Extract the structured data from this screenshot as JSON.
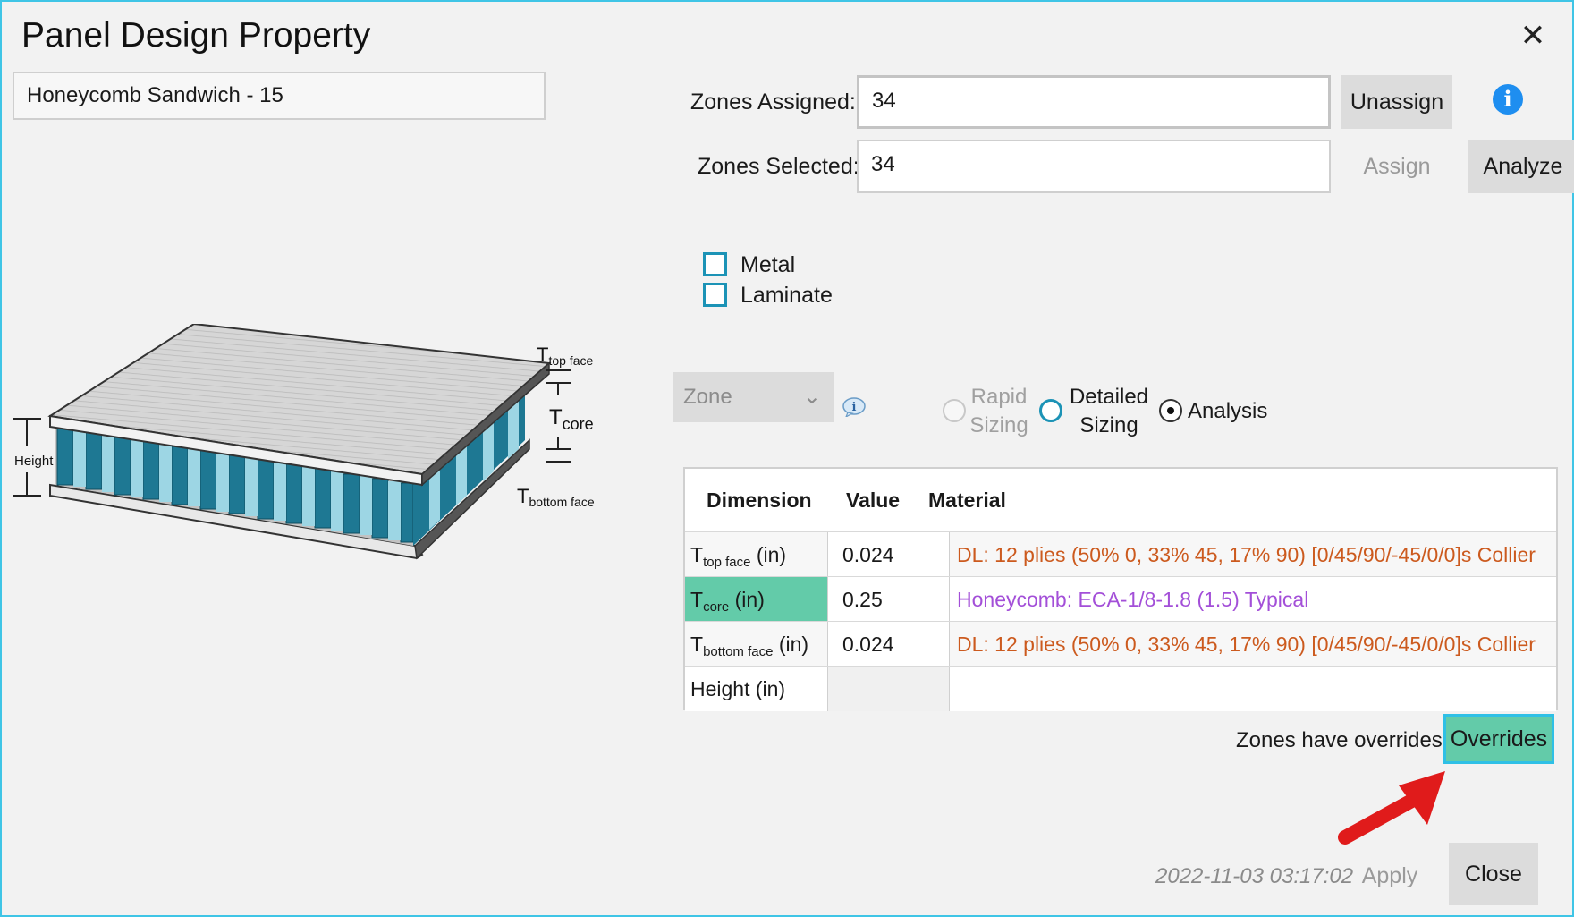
{
  "window": {
    "title": "Panel Design Property"
  },
  "property_name": "Honeycomb Sandwich - 15",
  "zones": {
    "assigned_label": "Zones Assigned:",
    "assigned_value": "34",
    "selected_label": "Zones Selected:",
    "selected_value": "34",
    "unassign_label": "Unassign",
    "assign_label": "Assign",
    "analyze_label": "Analyze"
  },
  "family": {
    "metal_label": "Metal",
    "metal_checked": false,
    "laminate_label": "Laminate",
    "laminate_checked": false
  },
  "mode": {
    "scope_select": "Zone",
    "rapid_label_1": "Rapid",
    "rapid_label_2": "Sizing",
    "detailed_label_1": "Detailed",
    "detailed_label_2": "Sizing",
    "analysis_label": "Analysis",
    "selected": "Analysis"
  },
  "diagram": {
    "labels": {
      "top": "T",
      "top_sub": "top face",
      "core": "T",
      "core_sub": "core",
      "bottom": "T",
      "bottom_sub": "bottom face",
      "height": "Height"
    }
  },
  "table": {
    "headers": [
      "Dimension",
      "Value",
      "Material"
    ],
    "rows": [
      {
        "dim_main": "T",
        "dim_sub": "top face",
        "dim_unit": " (in)",
        "value": "0.024",
        "material": "DL: 12 plies (50% 0, 33% 45, 17% 90) [0/45/90/-45/0/0]s Collier",
        "material_color": "orange"
      },
      {
        "dim_main": "T",
        "dim_sub": "core",
        "dim_unit": " (in)",
        "value": "0.25",
        "material": "Honeycomb: ECA-1/8-1.8 (1.5) Typical",
        "material_color": "purple"
      },
      {
        "dim_main": "T",
        "dim_sub": "bottom face",
        "dim_unit": " (in)",
        "value": "0.024",
        "material": "DL: 12 plies (50% 0, 33% 45, 17% 90) [0/45/90/-45/0/0]s Collier",
        "material_color": "orange"
      },
      {
        "dim_main": "Height (in)",
        "dim_sub": "",
        "dim_unit": "",
        "value": "",
        "material": "",
        "material_color": ""
      }
    ]
  },
  "overrides": {
    "status_text": "Zones have overrides",
    "button_label": "Overrides"
  },
  "footer": {
    "timestamp": "2022-11-03 03:17:02",
    "apply_label": "Apply",
    "close_label": "Close"
  },
  "colors": {
    "accent_cyan": "#2fc0e6",
    "highlight_green": "#63cba9",
    "material_orange": "#cc5a1e",
    "material_purple": "#a34fd8",
    "info_blue": "#1e8ef0",
    "annotation_red": "#e01b1b"
  }
}
